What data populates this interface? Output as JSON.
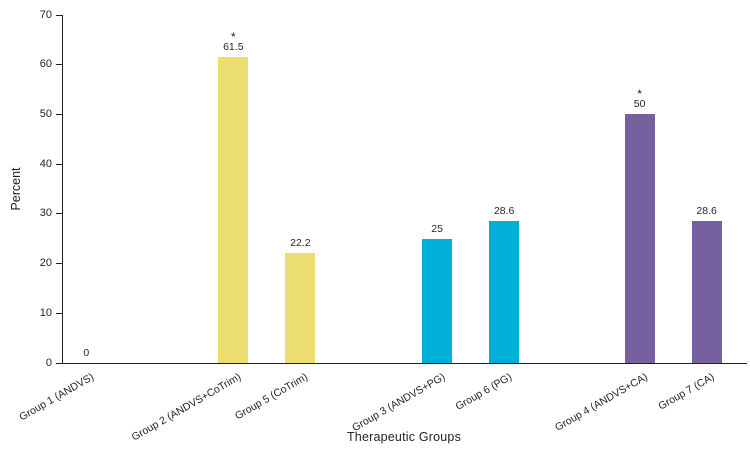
{
  "chart_data": {
    "type": "bar",
    "title": "",
    "xlabel": "Therapeutic Groups",
    "ylabel": "Percent",
    "ylim": [
      0,
      70
    ],
    "yticks": [
      0,
      10,
      20,
      30,
      40,
      50,
      60,
      70
    ],
    "grid": false,
    "legend": "none",
    "significance_marker": "*",
    "categories": [
      "Group 1 (ANDVS)",
      "Group 2 (ANDVS+CoTrim)",
      "Group 5 (CoTrim)",
      "Group 3 (ANDVS+PG)",
      "Group 6 (PG)",
      "Group 4 (ANDVS+CA)",
      "Group 7 (CA)"
    ],
    "values": [
      0,
      61.5,
      22.2,
      25,
      28.6,
      50,
      28.6
    ],
    "value_labels": [
      "0",
      "61.5",
      "22.2",
      "25",
      "28.6",
      "50",
      "28.6"
    ],
    "significant": [
      false,
      true,
      false,
      false,
      false,
      true,
      false
    ],
    "bar_colors": [
      "#ebdd70",
      "#ebdd70",
      "#ebdd70",
      "#00afd8",
      "#00afd8",
      "#77609f",
      "#77609f"
    ],
    "axis_color": "#231f20"
  }
}
